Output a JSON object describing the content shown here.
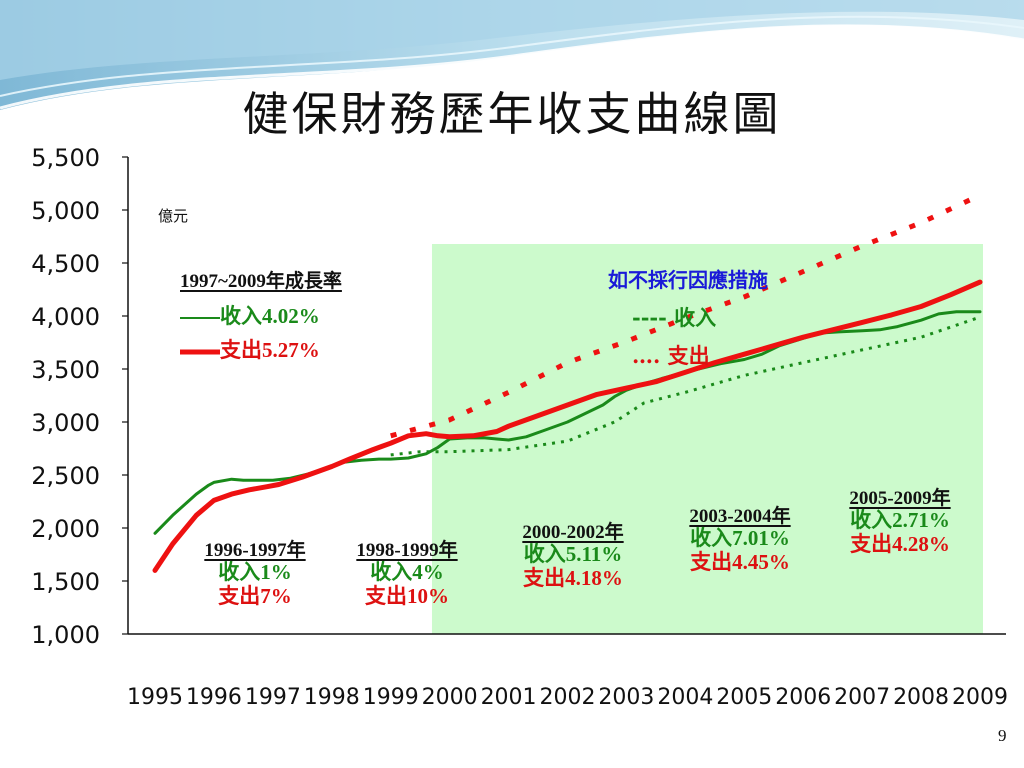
{
  "title": "健保財務歷年收支曲線圖",
  "unit_label": "億元",
  "page_number": "9",
  "legend": {
    "title": "1997~2009年成長率",
    "income_label": "收入4.02%",
    "expense_label": "支出5.27%"
  },
  "projection": {
    "title": "如不採行因應措施",
    "income_label": "---- 收入",
    "expense_label": "…. 支出"
  },
  "periods": [
    {
      "heading": "1996-1997年",
      "income": "收入1%",
      "expense": "支出7%"
    },
    {
      "heading": "1998-1999年",
      "income": "收入4%",
      "expense": "支出10%"
    },
    {
      "heading": "2000-2002年",
      "income": "收入5.11%",
      "expense": "支出4.18%"
    },
    {
      "heading": "2003-2004年",
      "income": "收入7.01%",
      "expense": "支出4.45%"
    },
    {
      "heading": "2005-2009年",
      "income": "收入2.71%",
      "expense": "支出4.28%"
    }
  ],
  "colors": {
    "income": "#1a8a1a",
    "expense": "#ee1111",
    "shade": "#ccfacc",
    "projection_title": "#1a1ad8"
  },
  "chart_data": {
    "type": "line",
    "ylim": [
      1000,
      5500
    ],
    "xlim": [
      1995,
      2009
    ],
    "y_ticks": [
      "1,000",
      "1,500",
      "2,000",
      "2,500",
      "3,000",
      "3,500",
      "4,000",
      "4,500",
      "5,000",
      "5,500"
    ],
    "x_ticks": [
      "1995",
      "1996",
      "1997",
      "1998",
      "1999",
      "2000",
      "2001",
      "2002",
      "2003",
      "2004",
      "2005",
      "2006",
      "2007",
      "2008",
      "2009"
    ],
    "shaded_x_range": [
      1999.7,
      2009
    ],
    "series": [
      {
        "name": "收入",
        "x": [
          1995,
          1995.3,
          1995.7,
          1995.9,
          1996,
          1996.3,
          1996.5,
          1996.8,
          1997,
          1997.3,
          1997.6,
          1998,
          1998.2,
          1998.5,
          1998.8,
          1999,
          1999.3,
          1999.6,
          1999.8,
          2000,
          2000.3,
          2000.6,
          2000.8,
          2001,
          2001.3,
          2001.6,
          2002,
          2002.3,
          2002.6,
          2002.8,
          2003,
          2003.3,
          2003.6,
          2004,
          2004.3,
          2004.6,
          2005,
          2005.3,
          2005.6,
          2006,
          2006.3,
          2006.6,
          2007,
          2007.3,
          2007.6,
          2008,
          2008.3,
          2008.6,
          2009
        ],
        "y": [
          1950,
          2120,
          2320,
          2400,
          2430,
          2460,
          2450,
          2450,
          2450,
          2470,
          2510,
          2580,
          2620,
          2640,
          2650,
          2650,
          2660,
          2700,
          2760,
          2840,
          2850,
          2850,
          2840,
          2830,
          2860,
          2920,
          3000,
          3080,
          3160,
          3240,
          3300,
          3360,
          3410,
          3470,
          3510,
          3550,
          3590,
          3640,
          3720,
          3790,
          3840,
          3850,
          3860,
          3870,
          3900,
          3960,
          4020,
          4040,
          4040
        ]
      },
      {
        "name": "支出",
        "x": [
          1995,
          1995.3,
          1995.7,
          1996,
          1996.3,
          1996.6,
          1996.9,
          1997.1,
          1997.5,
          1998,
          1998.3,
          1998.7,
          1999,
          1999.3,
          1999.6,
          1999.8,
          2000,
          2000.4,
          2000.8,
          2001,
          2001.5,
          2002,
          2002.5,
          2003,
          2003.5,
          2004,
          2004.5,
          2005,
          2005.5,
          2006,
          2006.5,
          2007,
          2007.5,
          2008,
          2008.5,
          2009
        ],
        "y": [
          1600,
          1850,
          2120,
          2260,
          2320,
          2360,
          2390,
          2410,
          2480,
          2580,
          2650,
          2740,
          2800,
          2870,
          2890,
          2870,
          2860,
          2870,
          2910,
          2960,
          3060,
          3160,
          3260,
          3320,
          3380,
          3470,
          3560,
          3640,
          3720,
          3800,
          3870,
          3940,
          4010,
          4090,
          4200,
          4320
        ]
      },
      {
        "name": "收入",
        "x": [
          1999,
          1999.5,
          2000,
          2001,
          2002,
          2002.8,
          2003.3,
          2004,
          2005,
          2006,
          2007,
          2008,
          2009
        ],
        "y": [
          2690,
          2720,
          2720,
          2740,
          2820,
          3000,
          3180,
          3280,
          3440,
          3560,
          3680,
          3800,
          3990
        ]
      },
      {
        "name": "支出",
        "x": [
          1999,
          2000,
          2001,
          2002,
          2003,
          2004,
          2005,
          2006,
          2007,
          2008,
          2009
        ],
        "y": [
          2870,
          3020,
          3280,
          3560,
          3760,
          3980,
          4180,
          4420,
          4660,
          4880,
          5140
        ]
      }
    ]
  }
}
